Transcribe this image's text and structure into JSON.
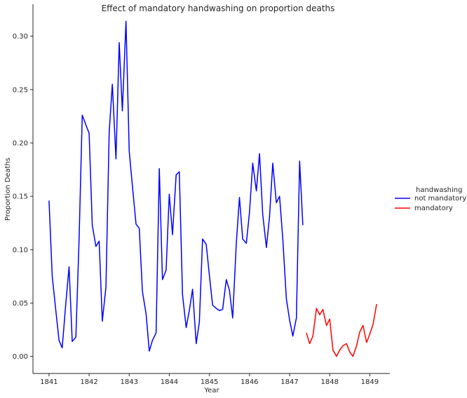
{
  "chart_data": {
    "type": "line",
    "title": "Effect of mandatory handwashing on proportion deaths",
    "xlabel": "Year",
    "ylabel": "Proportion Deaths",
    "xlim": [
      1840.6,
      1849.5
    ],
    "ylim": [
      -0.016,
      0.33
    ],
    "x_ticks": [
      1841,
      1842,
      1843,
      1844,
      1845,
      1846,
      1847,
      1848,
      1849
    ],
    "y_ticks": [
      0.0,
      0.05,
      0.1,
      0.15,
      0.2,
      0.25,
      0.3
    ],
    "y_tick_labels": [
      "0.00",
      "0.05",
      "0.10",
      "0.15",
      "0.20",
      "0.25",
      "0.30"
    ],
    "grid": false,
    "legend": {
      "title": "handwashing",
      "placement": "right"
    },
    "series": [
      {
        "name": "not mandatory",
        "color": "#0000ff",
        "x": [
          1841.0,
          1841.08,
          1841.17,
          1841.25,
          1841.33,
          1841.42,
          1841.5,
          1841.58,
          1841.67,
          1841.75,
          1841.83,
          1841.92,
          1842.0,
          1842.08,
          1842.17,
          1842.25,
          1842.33,
          1842.42,
          1842.5,
          1842.58,
          1842.67,
          1842.75,
          1842.83,
          1842.92,
          1843.0,
          1843.08,
          1843.17,
          1843.25,
          1843.33,
          1843.42,
          1843.5,
          1843.58,
          1843.67,
          1843.75,
          1843.83,
          1843.92,
          1844.0,
          1844.08,
          1844.17,
          1844.25,
          1844.33,
          1844.42,
          1844.5,
          1844.58,
          1844.67,
          1844.75,
          1844.83,
          1844.92,
          1845.0,
          1845.08,
          1845.17,
          1845.25,
          1845.33,
          1845.42,
          1845.5,
          1845.58,
          1845.67,
          1845.75,
          1845.83,
          1845.92,
          1846.0,
          1846.08,
          1846.17,
          1846.25,
          1846.33,
          1846.42,
          1846.5,
          1846.58,
          1846.67,
          1846.75,
          1846.83,
          1846.92,
          1847.0,
          1847.08,
          1847.17,
          1847.25,
          1847.33
        ],
        "values": [
          0.146,
          0.075,
          0.043,
          0.015,
          0.008,
          0.05,
          0.084,
          0.014,
          0.018,
          0.11,
          0.226,
          0.217,
          0.209,
          0.123,
          0.103,
          0.108,
          0.033,
          0.065,
          0.21,
          0.255,
          0.185,
          0.294,
          0.23,
          0.314,
          0.192,
          0.16,
          0.124,
          0.12,
          0.061,
          0.04,
          0.005,
          0.015,
          0.022,
          0.176,
          0.072,
          0.081,
          0.152,
          0.114,
          0.17,
          0.173,
          0.058,
          0.027,
          0.043,
          0.063,
          0.012,
          0.032,
          0.11,
          0.105,
          0.076,
          0.048,
          0.045,
          0.043,
          0.044,
          0.072,
          0.062,
          0.036,
          0.106,
          0.149,
          0.11,
          0.106,
          0.135,
          0.181,
          0.155,
          0.19,
          0.133,
          0.102,
          0.131,
          0.181,
          0.144,
          0.15,
          0.11,
          0.054,
          0.034,
          0.019,
          0.036,
          0.183,
          0.123
        ]
      },
      {
        "name": "mandatory",
        "color": "#ff0000",
        "x": [
          1847.42,
          1847.5,
          1847.58,
          1847.67,
          1847.75,
          1847.83,
          1847.92,
          1848.0,
          1848.08,
          1848.17,
          1848.25,
          1848.33,
          1848.42,
          1848.5,
          1848.58,
          1848.67,
          1848.75,
          1848.83,
          1848.92,
          1849.0,
          1849.08,
          1849.17
        ],
        "values": [
          0.022,
          0.012,
          0.019,
          0.045,
          0.039,
          0.044,
          0.029,
          0.035,
          0.006,
          0.0,
          0.006,
          0.01,
          0.012,
          0.004,
          0.0,
          0.01,
          0.023,
          0.029,
          0.013,
          0.021,
          0.03,
          0.049
        ]
      }
    ]
  }
}
